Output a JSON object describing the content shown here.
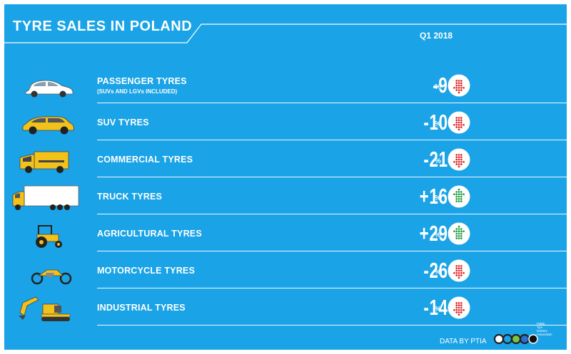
{
  "header": {
    "title": "TYRE SALES IN POLAND",
    "period": "Q1 2018"
  },
  "rows": [
    {
      "label": "PASSENGER TYRES",
      "sublabel": "(SUVs AND LGVs INCLUDED)",
      "value": "-9",
      "unit": "%",
      "direction": "down",
      "icon": "passenger-car-icon"
    },
    {
      "label": "SUV TYRES",
      "sublabel": "",
      "value": "-10",
      "unit": "%",
      "direction": "down",
      "icon": "suv-icon"
    },
    {
      "label": "COMMERCIAL TYRES",
      "sublabel": "",
      "value": "-21",
      "unit": "%",
      "direction": "down",
      "icon": "van-icon"
    },
    {
      "label": "TRUCK TYRES",
      "sublabel": "",
      "value": "+16",
      "unit": "%",
      "direction": "up",
      "icon": "truck-icon"
    },
    {
      "label": "AGRICULTURAL TYRES",
      "sublabel": "",
      "value": "+29",
      "unit": "%",
      "direction": "up",
      "icon": "tractor-icon"
    },
    {
      "label": "MOTORCYCLE TYRES",
      "sublabel": "",
      "value": "-26",
      "unit": "%",
      "direction": "down",
      "icon": "motorcycle-icon"
    },
    {
      "label": "INDUSTRIAL TYRES",
      "sublabel": "",
      "value": "-14",
      "unit": "%",
      "direction": "down",
      "icon": "excavator-icon"
    }
  ],
  "footer": {
    "source": "DATA BY PTIA",
    "logo_lines": [
      "Polish",
      "Tyre",
      "Industry",
      "Association"
    ]
  },
  "colors": {
    "background": "#1aa3e6",
    "text": "#ffffff",
    "down": "#e02020",
    "up": "#1a9a3a",
    "vehicle": "#f2c21b"
  }
}
